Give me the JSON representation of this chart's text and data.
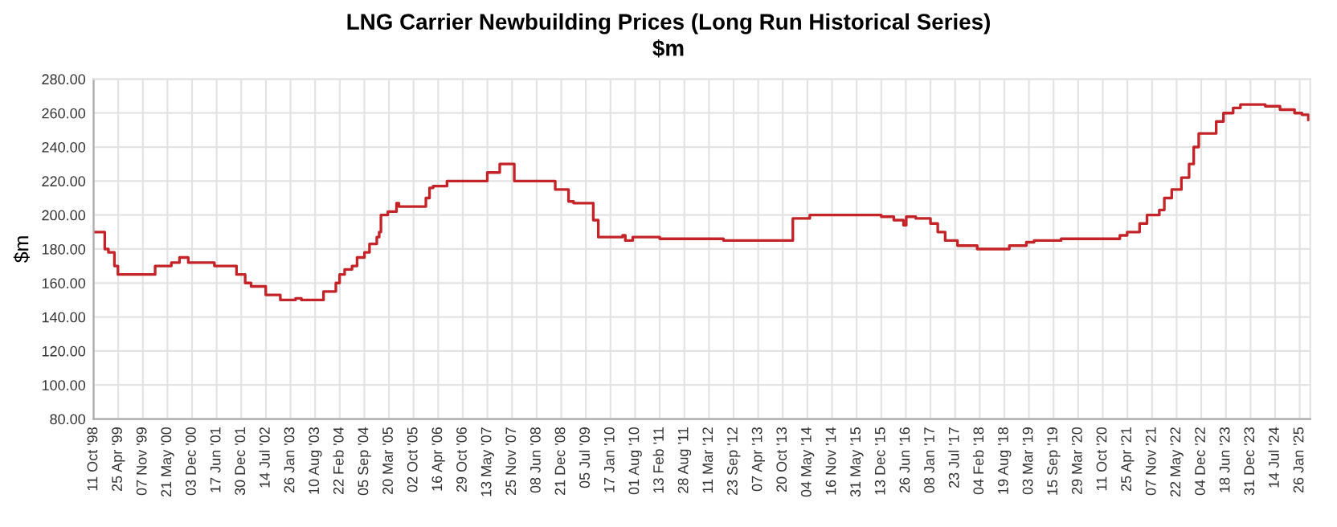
{
  "chart_data": {
    "type": "step",
    "title": "LNG Carrier Newbuilding Prices (Long Run Historical Series)",
    "subtitle": "$m",
    "ylabel": "$m",
    "series": [
      {
        "color": "#c42327",
        "x": [
          "1998-10-11",
          "1999-01-08",
          "1999-02-06",
          "1999-03-26",
          "1999-04-23",
          "2000-02-13",
          "2000-06-21",
          "2000-08-25",
          "2000-11-03",
          "2001-05-30",
          "2001-11-22",
          "2002-01-30",
          "2002-03-18",
          "2002-07-13",
          "2002-11-06",
          "2003-03-07",
          "2003-04-23",
          "2003-10-16",
          "2004-01-22",
          "2004-02-21",
          "2004-04-01",
          "2004-05-30",
          "2004-07-09",
          "2004-09-06",
          "2004-10-16",
          "2004-12-13",
          "2005-01-01",
          "2005-01-15",
          "2005-03-11",
          "2005-05-19",
          "2005-06-07",
          "2006-01-08",
          "2006-02-06",
          "2006-03-07",
          "2006-06-25",
          "2007-05-12",
          "2007-08-19",
          "2007-12-13",
          "2008-11-03",
          "2009-02-17",
          "2009-03-29",
          "2009-09-02",
          "2009-10-12",
          "2010-04-23",
          "2010-05-15",
          "2010-07-13",
          "2011-02-13",
          "2012-07-05",
          "2014-01-08",
          "2014-05-23",
          "2015-12-13",
          "2016-03-22",
          "2016-06-07",
          "2016-06-29",
          "2016-09-13",
          "2017-01-08",
          "2017-03-07",
          "2017-05-05",
          "2017-08-11",
          "2018-01-15",
          "2018-09-28",
          "2019-02-10",
          "2019-04-13",
          "2019-11-14",
          "2021-02-24",
          "2021-04-23",
          "2021-07-31",
          "2021-09-28",
          "2022-01-04",
          "2022-02-13",
          "2022-04-13",
          "2022-06-29",
          "2022-08-29",
          "2022-10-05",
          "2022-11-14",
          "2023-04-02",
          "2023-05-30",
          "2023-08-15",
          "2023-10-12",
          "2024-04-27",
          "2024-08-22",
          "2024-12-16",
          "2025-02-13",
          "2025-04-05"
        ],
        "values": [
          190,
          180,
          178,
          170,
          165,
          170,
          172,
          175,
          172,
          170,
          165,
          160,
          158,
          153,
          150,
          151,
          150,
          155,
          160,
          165,
          168,
          170,
          175,
          178,
          183,
          187,
          190,
          200,
          202,
          207,
          205,
          210,
          216,
          217,
          220,
          225,
          230,
          220,
          215,
          208,
          207,
          197,
          187,
          188,
          185,
          187,
          186,
          185,
          198,
          200,
          199,
          197,
          194,
          199,
          198,
          195,
          190,
          185,
          182,
          180,
          182,
          184,
          185,
          186,
          188,
          190,
          195,
          200,
          203,
          210,
          215,
          222,
          230,
          240,
          248,
          255,
          260,
          263,
          265,
          264,
          262,
          260,
          259,
          256
        ]
      }
    ],
    "xlim": [
      "1998-10-11",
      "2025-04-20"
    ],
    "xticks": [
      {
        "value": "1998-10-11",
        "label": "11 Oct '98"
      },
      {
        "value": "1999-04-25",
        "label": "25 Apr '99"
      },
      {
        "value": "1999-11-07",
        "label": "07 Nov '99"
      },
      {
        "value": "2000-05-21",
        "label": "21 May '00"
      },
      {
        "value": "2000-12-03",
        "label": "03 Dec '00"
      },
      {
        "value": "2001-06-17",
        "label": "17 Jun '01"
      },
      {
        "value": "2001-12-30",
        "label": "30 Dec '01"
      },
      {
        "value": "2002-07-14",
        "label": "14 Jul '02"
      },
      {
        "value": "2003-01-26",
        "label": "26 Jan '03"
      },
      {
        "value": "2003-08-10",
        "label": "10 Aug '03"
      },
      {
        "value": "2004-02-22",
        "label": "22 Feb '04"
      },
      {
        "value": "2004-09-05",
        "label": "05 Sep '04"
      },
      {
        "value": "2005-03-20",
        "label": "20 Mar '05"
      },
      {
        "value": "2005-10-02",
        "label": "02 Oct '05"
      },
      {
        "value": "2006-04-16",
        "label": "16 Apr '06"
      },
      {
        "value": "2006-10-29",
        "label": "29 Oct '06"
      },
      {
        "value": "2007-05-13",
        "label": "13 May '07"
      },
      {
        "value": "2007-11-25",
        "label": "25 Nov '07"
      },
      {
        "value": "2008-06-08",
        "label": "08 Jun '08"
      },
      {
        "value": "2008-12-21",
        "label": "21 Dec '08"
      },
      {
        "value": "2009-07-05",
        "label": "05 Jul '09"
      },
      {
        "value": "2010-01-17",
        "label": "17 Jan '10"
      },
      {
        "value": "2010-08-01",
        "label": "01 Aug '10"
      },
      {
        "value": "2011-02-13",
        "label": "13 Feb '11"
      },
      {
        "value": "2011-08-28",
        "label": "28 Aug '11"
      },
      {
        "value": "2012-03-11",
        "label": "11 Mar '12"
      },
      {
        "value": "2012-09-23",
        "label": "23 Sep '12"
      },
      {
        "value": "2013-04-07",
        "label": "07 Apr '13"
      },
      {
        "value": "2013-10-20",
        "label": "20 Oct '13"
      },
      {
        "value": "2014-05-04",
        "label": "04 May '14"
      },
      {
        "value": "2014-11-16",
        "label": "16 Nov '14"
      },
      {
        "value": "2015-05-31",
        "label": "31 May '15"
      },
      {
        "value": "2015-12-13",
        "label": "13 Dec '15"
      },
      {
        "value": "2016-06-26",
        "label": "26 Jun '16"
      },
      {
        "value": "2017-01-08",
        "label": "08 Jan '17"
      },
      {
        "value": "2017-07-23",
        "label": "23 Jul '17"
      },
      {
        "value": "2018-02-04",
        "label": "04 Feb '18"
      },
      {
        "value": "2018-08-19",
        "label": "19 Aug '18"
      },
      {
        "value": "2019-03-03",
        "label": "03 Mar '19"
      },
      {
        "value": "2019-09-15",
        "label": "15 Sep '19"
      },
      {
        "value": "2020-03-29",
        "label": "29 Mar '20"
      },
      {
        "value": "2020-10-11",
        "label": "11 Oct '20"
      },
      {
        "value": "2021-04-25",
        "label": "25 Apr '21"
      },
      {
        "value": "2021-11-07",
        "label": "07 Nov '21"
      },
      {
        "value": "2022-05-22",
        "label": "22 May '22"
      },
      {
        "value": "2022-12-04",
        "label": "04 Dec '22"
      },
      {
        "value": "2023-06-18",
        "label": "18 Jun '23"
      },
      {
        "value": "2023-12-31",
        "label": "31 Dec '23"
      },
      {
        "value": "2024-07-14",
        "label": "14 Jul '24"
      },
      {
        "value": "2025-01-26",
        "label": "26 Jan '25"
      }
    ],
    "ylim": [
      80,
      280
    ],
    "yticks": [
      {
        "value": 80,
        "label": "80.00"
      },
      {
        "value": 100,
        "label": "100.00"
      },
      {
        "value": 120,
        "label": "120.00"
      },
      {
        "value": 140,
        "label": "140.00"
      },
      {
        "value": 160,
        "label": "160.00"
      },
      {
        "value": 180,
        "label": "180.00"
      },
      {
        "value": 200,
        "label": "200.00"
      },
      {
        "value": 220,
        "label": "220.00"
      },
      {
        "value": 240,
        "label": "240.00"
      },
      {
        "value": 260,
        "label": "260.00"
      },
      {
        "value": 280,
        "label": "280.00"
      }
    ],
    "grid": true
  }
}
